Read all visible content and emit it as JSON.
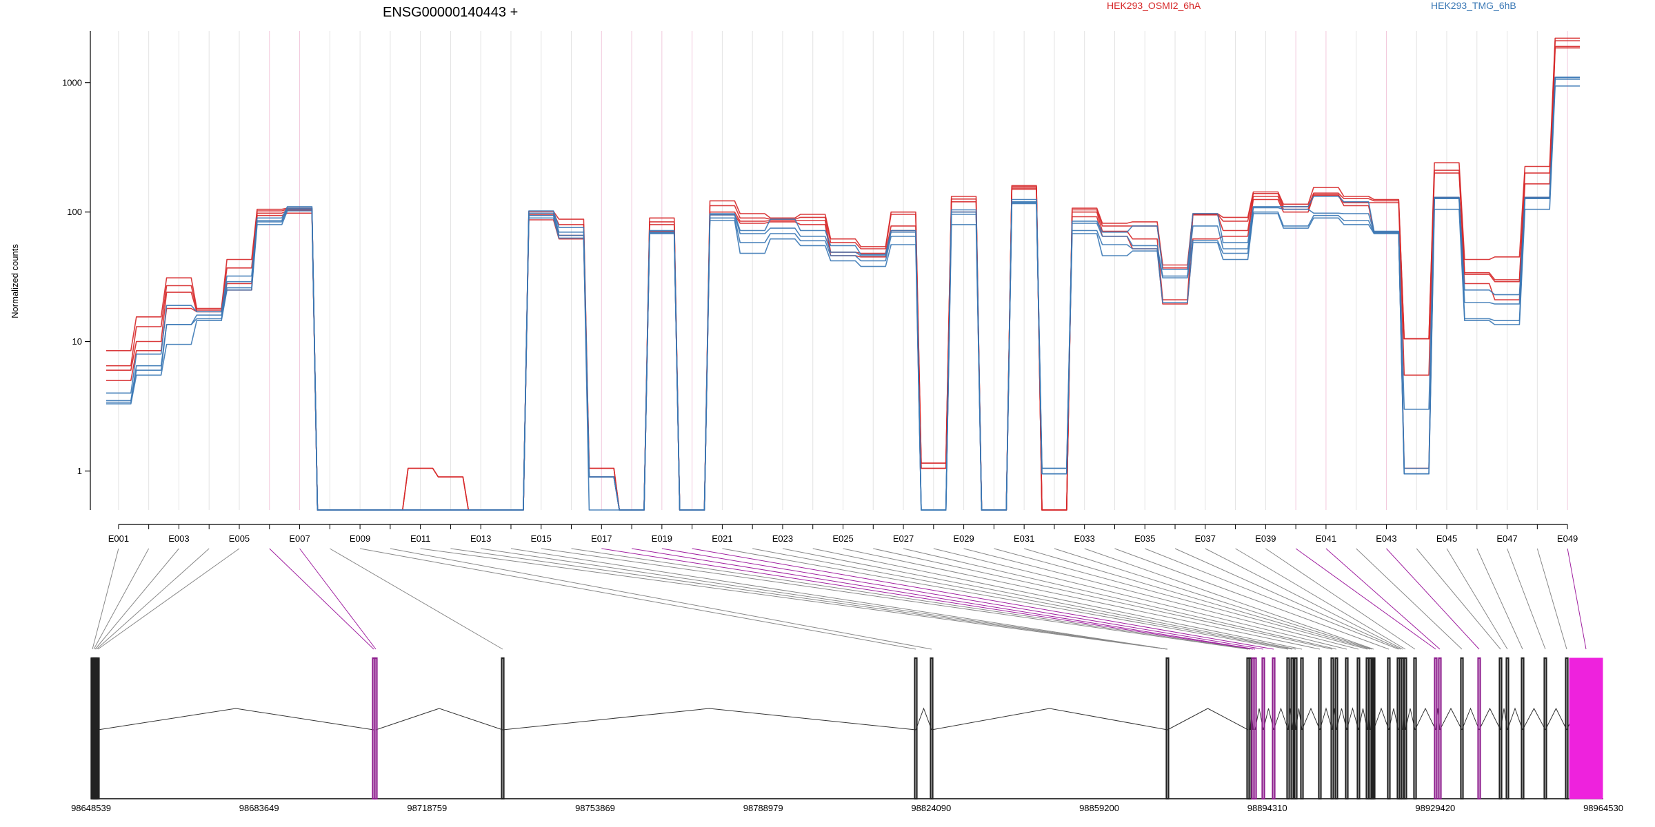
{
  "chart_data": {
    "type": "line",
    "title": "ENSG00000140443 +",
    "ylabel": "Normalized counts",
    "yscale": "log",
    "ylim": [
      0.5,
      2500
    ],
    "yticks": [
      "1",
      "10",
      "100",
      "1000"
    ],
    "legend_placement": "top",
    "legend": [
      {
        "name": "HEK293_OSMI2_6hA",
        "color": "#d62728"
      },
      {
        "name": "HEK293_TMG_6hB",
        "color": "#3a78b5"
      }
    ],
    "exon_tick_labels": [
      "E001",
      "E003",
      "E005",
      "E007",
      "E009",
      "E011",
      "E013",
      "E015",
      "E017",
      "E019",
      "E021",
      "E023",
      "E025",
      "E027",
      "E029",
      "E031",
      "E033",
      "E035",
      "E037",
      "E039",
      "E041",
      "E043",
      "E045",
      "E047",
      "E049"
    ],
    "exons": [
      "E001",
      "E002",
      "E003",
      "E004",
      "E005",
      "E006",
      "E007",
      "E008",
      "E009",
      "E010",
      "E011",
      "E012",
      "E013",
      "E014",
      "E015",
      "E016",
      "E017",
      "E018",
      "E019",
      "E020",
      "E021",
      "E022",
      "E023",
      "E024",
      "E025",
      "E026",
      "E027",
      "E028",
      "E029",
      "E030",
      "E031",
      "E032",
      "E033",
      "E034",
      "E035",
      "E036",
      "E037",
      "E038",
      "E039",
      "E040",
      "E041",
      "E042",
      "E043",
      "E044",
      "E045",
      "E046",
      "E047",
      "E048",
      "E049"
    ],
    "highlighted_exons": [
      "E006",
      "E007",
      "E017",
      "E018",
      "E019",
      "E020",
      "E040",
      "E041",
      "E043",
      "E049"
    ],
    "series": [
      {
        "name": "HEK293_OSMI2_6hA rep1",
        "group": "HEK293_OSMI2_6hA",
        "values": [
          8.5,
          15.5,
          31,
          18,
          43,
          105,
          107,
          0.5,
          0.5,
          0.5,
          1.05,
          0.9,
          0.5,
          0.5,
          101,
          88,
          1.05,
          0.5,
          90,
          0.5,
          122,
          97,
          90,
          96,
          62,
          54,
          100,
          1.15,
          132,
          0.5,
          160,
          0.5,
          107,
          82,
          84,
          39,
          97,
          91,
          143,
          115,
          155,
          132,
          125,
          10.5,
          240,
          43,
          45,
          225,
          2200
        ]
      },
      {
        "name": "HEK293_OSMI2_6hA rep2",
        "group": "HEK293_OSMI2_6hA",
        "values": [
          6.5,
          13,
          27,
          17.5,
          37,
          102,
          105,
          0.5,
          0.5,
          0.5,
          1.05,
          0.9,
          0.5,
          0.5,
          98,
          80,
          1.05,
          0.5,
          84,
          0.5,
          112,
          90,
          88,
          91,
          58,
          52,
          96,
          1.15,
          126,
          0.5,
          157,
          0.5,
          104,
          78,
          78,
          37,
          96,
          85,
          139,
          110,
          140,
          127,
          122,
          10.5,
          210,
          34,
          30,
          200,
          2100
        ]
      },
      {
        "name": "HEK293_OSMI2_6hA rep3",
        "group": "HEK293_OSMI2_6hA",
        "values": [
          6,
          10,
          24,
          17,
          28,
          98,
          103,
          0.5,
          0.5,
          0.5,
          0.5,
          0.5,
          0.5,
          0.5,
          95,
          66,
          0.9,
          0.5,
          80,
          0.5,
          100,
          85,
          86,
          86,
          49,
          48,
          78,
          1.05,
          120,
          0.5,
          153,
          0.5,
          100,
          71,
          62,
          21,
          95,
          72,
          132,
          105,
          136,
          118,
          118,
          5.5,
          200,
          33,
          29,
          165,
          1900
        ]
      },
      {
        "name": "HEK293_OSMI2_6hA rep4",
        "group": "HEK293_OSMI2_6hA",
        "values": [
          5,
          8.5,
          18,
          17,
          25,
          94,
          98,
          0.5,
          0.5,
          0.5,
          0.5,
          0.5,
          0.5,
          0.5,
          87,
          62,
          0.9,
          0.5,
          71,
          0.5,
          95,
          82,
          84,
          80,
          46,
          45,
          72,
          1.05,
          100,
          0.5,
          150,
          0.5,
          92,
          65,
          52,
          19.5,
          62,
          65,
          125,
          100,
          135,
          112,
          70,
          1.05,
          130,
          28,
          21,
          130,
          1850
        ]
      },
      {
        "name": "HEK293_TMG_6hB rep1",
        "group": "HEK293_TMG_6hB",
        "values": [
          4,
          8,
          19,
          17,
          32,
          90,
          110,
          0.5,
          0.5,
          0.5,
          0.5,
          0.5,
          0.5,
          0.5,
          102,
          76,
          0.9,
          0.5,
          72,
          0.5,
          97,
          72,
          88,
          72,
          55,
          47,
          72,
          0.5,
          104,
          0.5,
          125,
          1.05,
          85,
          70,
          78,
          36,
          97,
          58,
          110,
          110,
          132,
          120,
          71,
          3.0,
          130,
          25,
          23,
          130,
          1100
        ]
      },
      {
        "name": "HEK293_TMG_6hB rep2",
        "group": "HEK293_TMG_6hB",
        "values": [
          3.5,
          6.5,
          13.5,
          16,
          29,
          86,
          107,
          0.5,
          0.5,
          0.5,
          0.5,
          0.5,
          0.5,
          0.5,
          98,
          70,
          0.9,
          0.5,
          70,
          0.5,
          95,
          68,
          75,
          65,
          49,
          46,
          70,
          0.5,
          100,
          0.5,
          120,
          1.05,
          82,
          65,
          55,
          32,
          78,
          52,
          108,
          105,
          98,
          97,
          70,
          1.05,
          128,
          20,
          19.5,
          128,
          1090
        ]
      },
      {
        "name": "HEK293_TMG_6hB rep3",
        "group": "HEK293_TMG_6hB",
        "values": [
          3.4,
          6,
          13.5,
          15,
          26,
          84,
          105,
          0.5,
          0.5,
          0.5,
          0.5,
          0.5,
          0.5,
          0.5,
          94,
          66,
          0.9,
          0.5,
          69,
          0.5,
          90,
          58,
          68,
          60,
          46,
          42,
          65,
          0.5,
          96,
          0.5,
          118,
          0.95,
          72,
          56,
          52,
          31,
          60,
          48,
          100,
          78,
          94,
          86,
          69,
          0.95,
          127,
          15,
          14.5,
          127,
          1060
        ]
      },
      {
        "name": "HEK293_TMG_6hB rep4",
        "group": "HEK293_TMG_6hB",
        "values": [
          3.3,
          5.5,
          9.5,
          14.5,
          25,
          80,
          102,
          0.5,
          0.5,
          0.5,
          0.5,
          0.5,
          0.5,
          0.5,
          90,
          63,
          0.5,
          0.5,
          68,
          0.5,
          86,
          48,
          62,
          55,
          42,
          38,
          56,
          0.5,
          80,
          0.5,
          116,
          0.95,
          68,
          46,
          50,
          20,
          58,
          43,
          97,
          75,
          90,
          80,
          68,
          0.95,
          105,
          14.5,
          13.5,
          105,
          940
        ]
      }
    ],
    "genomic_axis": {
      "labels": [
        "98648539",
        "98683649",
        "98718759",
        "98753869",
        "98788979",
        "98824090",
        "98859200",
        "98894310",
        "98929420",
        "98964530"
      ]
    }
  }
}
